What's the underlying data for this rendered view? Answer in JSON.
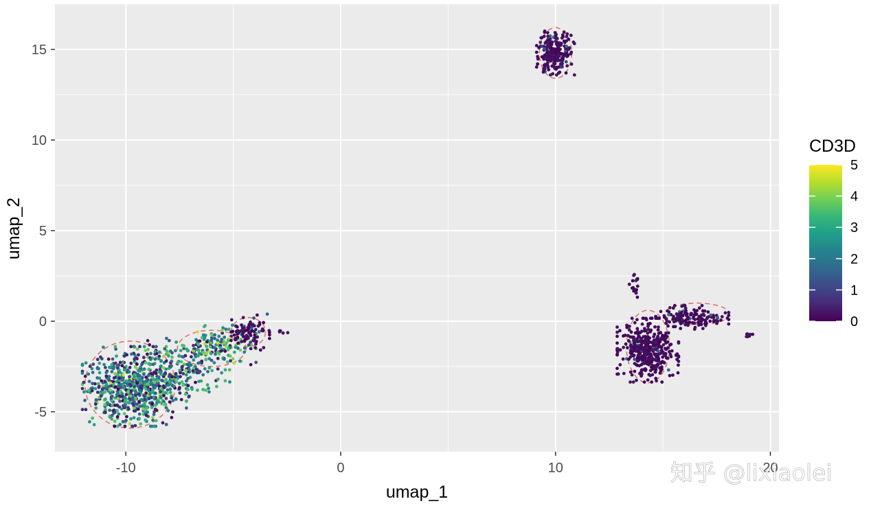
{
  "chart_data": {
    "type": "scatter",
    "xlabel": "umap_1",
    "ylabel": "umap_2",
    "xlim": [
      -13.3,
      20.4
    ],
    "ylim": [
      -7.2,
      17.5
    ],
    "xticks": [
      -10,
      0,
      10,
      20
    ],
    "yticks": [
      -5,
      0,
      5,
      10,
      15
    ],
    "xtick_labels": [
      "-10",
      "0",
      "10",
      "20"
    ],
    "ytick_labels": [
      "-5",
      "0",
      "5",
      "10",
      "15"
    ],
    "grid": true,
    "legend": {
      "title": "CD3D",
      "position": "right",
      "range": [
        0,
        5
      ],
      "breaks": [
        0,
        1,
        2,
        3,
        4,
        5
      ],
      "labels": [
        "0",
        "1",
        "2",
        "3",
        "4",
        "5"
      ],
      "colors": [
        "#440154",
        "#3b528b",
        "#21908c",
        "#5dc863",
        "#fde725"
      ]
    },
    "clusters": [
      {
        "center": [
          -9.6,
          -3.6
        ],
        "spread": [
          1.1,
          1.0
        ],
        "n": 700,
        "expr": 2.3
      },
      {
        "center": [
          -7.0,
          -2.6
        ],
        "spread": [
          0.9,
          0.9
        ],
        "n": 160,
        "expr": 2.5
      },
      {
        "center": [
          -5.7,
          -1.3
        ],
        "spread": [
          0.8,
          0.5
        ],
        "n": 130,
        "expr": 2.9
      },
      {
        "center": [
          -4.3,
          -0.6
        ],
        "spread": [
          0.45,
          0.45
        ],
        "n": 90,
        "expr": 0.2
      },
      {
        "center": [
          10.0,
          14.8
        ],
        "spread": [
          0.4,
          0.55
        ],
        "n": 230,
        "expr": 0.05
      },
      {
        "center": [
          14.3,
          -1.6
        ],
        "spread": [
          0.65,
          0.8
        ],
        "n": 380,
        "expr": 0.15
      },
      {
        "center": [
          16.3,
          0.2
        ],
        "spread": [
          0.8,
          0.3
        ],
        "n": 150,
        "expr": 0.1
      },
      {
        "center": [
          13.7,
          1.9
        ],
        "spread": [
          0.12,
          0.5
        ],
        "n": 18,
        "expr": 0.05
      },
      {
        "center": [
          19.0,
          -0.8
        ],
        "spread": [
          0.1,
          0.06
        ],
        "n": 8,
        "expr": 0.05
      },
      {
        "center": [
          -2.8,
          -0.6
        ],
        "spread": [
          0.2,
          0.05
        ],
        "n": 5,
        "expr": 0.6
      }
    ],
    "outlines": [
      {
        "center": [
          -9.8,
          -3.5
        ],
        "radii": [
          2.1,
          2.4
        ]
      },
      {
        "center": [
          -6.0,
          -1.5
        ],
        "radii": [
          1.6,
          1.0
        ]
      },
      {
        "center": [
          -4.3,
          -0.6
        ],
        "radii": [
          0.8,
          0.8
        ]
      },
      {
        "center": [
          10.0,
          14.8
        ],
        "radii": [
          0.75,
          1.4
        ]
      },
      {
        "center": [
          14.3,
          -1.4
        ],
        "radii": [
          1.0,
          2.0
        ]
      },
      {
        "center": [
          16.6,
          0.4
        ],
        "radii": [
          1.5,
          0.6
        ]
      }
    ],
    "outline_color": "#e3736c"
  },
  "watermark": "知乎 @lixiaolei"
}
